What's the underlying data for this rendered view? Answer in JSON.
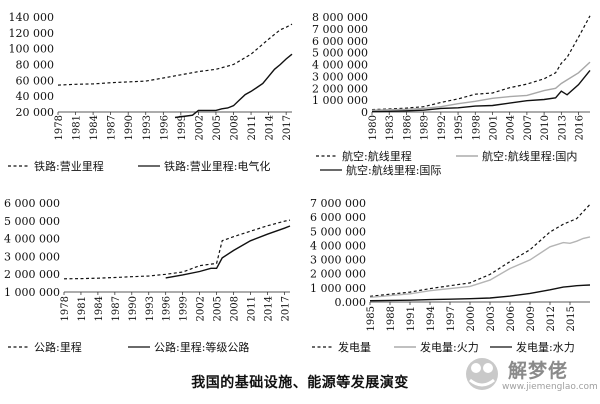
{
  "caption": "我国的基础设施、能源等发展演变",
  "watermark": {
    "name": "解梦佬",
    "url": "www.jiemenglao.com"
  },
  "colors": {
    "black": "#111111",
    "gray": "#8c8c8c",
    "lightgray": "#bdbdbd"
  },
  "chart_data": [
    {
      "type": "line",
      "title": "",
      "yticks": [
        "140 000",
        "120 000",
        "100 000",
        "80 000",
        "60 000",
        "40 000",
        "20 000"
      ],
      "ylim": [
        20000,
        140000
      ],
      "xticks": [
        "1978",
        "1981",
        "1984",
        "1987",
        "1990",
        "1993",
        "1996",
        "1999",
        "2002",
        "2005",
        "2008",
        "2011",
        "2014",
        "2017"
      ],
      "xlim": [
        1978,
        2018
      ],
      "series": [
        {
          "name": "铁路:营业里程",
          "style": "dashed",
          "color": "#111111",
          "x": [
            1978,
            1981,
            1984,
            1987,
            1990,
            1993,
            1996,
            1999,
            2002,
            2005,
            2008,
            2011,
            2014,
            2016,
            2017,
            2018
          ],
          "y": [
            54000,
            55000,
            55500,
            57000,
            58000,
            59000,
            63000,
            67000,
            71000,
            74000,
            80000,
            93000,
            112000,
            124000,
            127000,
            131000
          ]
        },
        {
          "name": "铁路:营业里程:电气化",
          "style": "solid",
          "color": "#111111",
          "x": [
            1998,
            2000,
            2001,
            2002,
            2005,
            2006,
            2007,
            2008,
            2009,
            2010,
            2011,
            2012,
            2013,
            2014,
            2015,
            2016,
            2017,
            2018
          ],
          "y": [
            13000,
            15000,
            16000,
            22000,
            22000,
            24000,
            25000,
            28000,
            35000,
            42000,
            46000,
            51000,
            56000,
            65000,
            74000,
            80000,
            87000,
            93000
          ]
        }
      ],
      "legend": [
        {
          "label": "铁路:营业里程",
          "style": "dashed"
        },
        {
          "label": "铁路:营业里程:电气化",
          "style": "solid"
        }
      ]
    },
    {
      "type": "line",
      "title": "",
      "yticks": [
        "8 000 000",
        "7 000 000",
        "6 000 000",
        "5 000 000",
        "4 000 000",
        "3 000 000",
        "2 000 000",
        "1 000 000",
        "0"
      ],
      "ylim": [
        0,
        8000000
      ],
      "xticks": [
        "1980",
        "1983",
        "1986",
        "1989",
        "1992",
        "1995",
        "1998",
        "2001",
        "2004",
        "2007",
        "2010",
        "2013",
        "2016"
      ],
      "xlim": [
        1980,
        2018
      ],
      "series": [
        {
          "name": "航空:航线里程",
          "style": "dashed",
          "color": "#111111",
          "x": [
            1980,
            1983,
            1986,
            1989,
            1992,
            1995,
            1998,
            2001,
            2004,
            2007,
            2010,
            2012,
            2013,
            2014,
            2016,
            2018
          ],
          "y": [
            200000,
            250000,
            330000,
            450000,
            800000,
            1100000,
            1500000,
            1600000,
            2050000,
            2350000,
            2800000,
            3300000,
            4100000,
            4600000,
            6300000,
            8100000
          ]
        },
        {
          "name": "航空:航线里程:国内",
          "style": "solid",
          "color": "#a8a8a8",
          "x": [
            1980,
            1983,
            1986,
            1989,
            1992,
            1995,
            1998,
            2001,
            2004,
            2007,
            2010,
            2012,
            2013,
            2014,
            2016,
            2018
          ],
          "y": [
            150000,
            190000,
            230000,
            300000,
            450000,
            700000,
            900000,
            1150000,
            1300000,
            1400000,
            1800000,
            2000000,
            2400000,
            2700000,
            3300000,
            4200000
          ]
        },
        {
          "name": "航空:航线里程:国际",
          "style": "solid",
          "color": "#111111",
          "x": [
            1980,
            1983,
            1986,
            1989,
            1992,
            1995,
            1998,
            2001,
            2004,
            2007,
            2010,
            2012,
            2013,
            2014,
            2016,
            2018
          ],
          "y": [
            30000,
            60000,
            100000,
            150000,
            300000,
            350000,
            500000,
            550000,
            750000,
            950000,
            1050000,
            1200000,
            1750000,
            1450000,
            2300000,
            3500000
          ]
        }
      ],
      "legend": [
        {
          "label": "航空:航线里程",
          "style": "dashed"
        },
        {
          "label": "航空:航线里程:国内",
          "style": "gray"
        },
        {
          "label": "航空:航线里程:国际",
          "style": "solid"
        }
      ]
    },
    {
      "type": "line",
      "title": "",
      "yticks": [
        "6 000 000",
        "5 000 000",
        "4 000 000",
        "3 000 000",
        "2 000 000",
        "1 000 000"
      ],
      "ylim": [
        0,
        6000000
      ],
      "xticks": [
        "1978",
        "1981",
        "1984",
        "1987",
        "1990",
        "1993",
        "1996",
        "1999",
        "2002",
        "2005",
        "2008",
        "2011",
        "2014",
        "2017"
      ],
      "xlim": [
        1978,
        2018
      ],
      "series": [
        {
          "name": "公路:里程",
          "style": "dashed",
          "color": "#111111",
          "x": [
            1978,
            1981,
            1984,
            1987,
            1990,
            1993,
            1996,
            1999,
            2002,
            2004,
            2005,
            2006,
            2008,
            2011,
            2014,
            2017,
            2018
          ],
          "y": [
            890000,
            900000,
            930000,
            980000,
            1030000,
            1080000,
            1190000,
            1350000,
            1770000,
            1880000,
            1930000,
            3460000,
            3730000,
            4100000,
            4460000,
            4770000,
            4850000
          ]
        },
        {
          "name": "公路:里程:等级公路",
          "style": "solid",
          "color": "#111111",
          "x": [
            1996,
            1999,
            2002,
            2004,
            2005,
            2006,
            2008,
            2011,
            2014,
            2017,
            2018
          ],
          "y": [
            950000,
            1150000,
            1380000,
            1600000,
            1600000,
            2300000,
            2800000,
            3450000,
            3900000,
            4300000,
            4450000
          ]
        }
      ],
      "legend": [
        {
          "label": "公路:里程",
          "style": "dashed"
        },
        {
          "label": "公路:里程:等级公路",
          "style": "solid"
        }
      ]
    },
    {
      "type": "line",
      "title": "",
      "yticks": [
        "7 000 000",
        "6 000 000",
        "5 000 000",
        "4 000 000",
        "3 000 000",
        "2 000 000",
        "1 000 000",
        "0.000"
      ],
      "ylim": [
        0,
        7000000
      ],
      "xticks": [
        "1985",
        "1988",
        "1991",
        "1994",
        "1997",
        "2000",
        "2003",
        "2006",
        "2009",
        "2012",
        "2015"
      ],
      "xlim": [
        1985,
        2018
      ],
      "series": [
        {
          "name": "发电量",
          "style": "dashed",
          "color": "#111111",
          "x": [
            1985,
            1988,
            1991,
            1994,
            1997,
            2000,
            2003,
            2006,
            2009,
            2012,
            2014,
            2015,
            2016,
            2017,
            2018
          ],
          "y": [
            400000,
            550000,
            700000,
            950000,
            1150000,
            1350000,
            1950000,
            2860000,
            3700000,
            4950000,
            5500000,
            5700000,
            5900000,
            6400000,
            6900000
          ]
        },
        {
          "name": "发电量:火力",
          "style": "solid",
          "color": "#b5b5b5",
          "x": [
            1985,
            1988,
            1991,
            1994,
            1997,
            2000,
            2003,
            2006,
            2009,
            2012,
            2014,
            2015,
            2016,
            2017,
            2018
          ],
          "y": [
            330000,
            450000,
            580000,
            800000,
            950000,
            1100000,
            1550000,
            2370000,
            2980000,
            3900000,
            4200000,
            4150000,
            4300000,
            4500000,
            4600000
          ]
        },
        {
          "name": "发电量:水力",
          "style": "solid",
          "color": "#111111",
          "x": [
            1985,
            1988,
            1991,
            1994,
            1997,
            2000,
            2003,
            2006,
            2009,
            2012,
            2014,
            2015,
            2016,
            2017,
            2018
          ],
          "y": [
            90000,
            110000,
            125000,
            170000,
            200000,
            230000,
            280000,
            420000,
            610000,
            860000,
            1050000,
            1100000,
            1150000,
            1180000,
            1200000
          ]
        }
      ],
      "legend": [
        {
          "label": "发电量",
          "style": "dashed"
        },
        {
          "label": "发电量:火力",
          "style": "gray"
        },
        {
          "label": "发电量:水力",
          "style": "solid"
        }
      ]
    }
  ]
}
